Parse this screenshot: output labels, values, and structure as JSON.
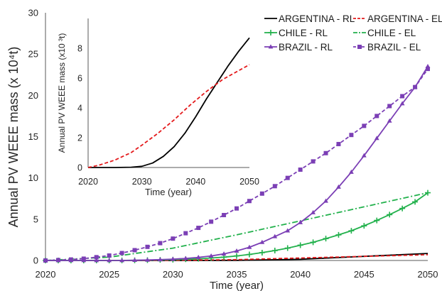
{
  "chart_data": [
    {
      "id": "main",
      "type": "line",
      "xlabel": "Time (year)",
      "ylabel": "Annual PV WEEE mass (x 10⁴t)",
      "xlim": [
        2020,
        2050
      ],
      "ylim": [
        0,
        30
      ],
      "xticks": [
        2020,
        2025,
        2030,
        2035,
        2040,
        2045,
        2050
      ],
      "yticks": [
        0,
        5,
        10,
        15,
        20,
        25,
        30
      ],
      "grid": false,
      "legend_position": "top-right",
      "series": [
        {
          "name": "ARGENTINA - RL",
          "color": "#000000",
          "dash": "solid",
          "marker": "none",
          "x": [
            2020,
            2025,
            2030,
            2035,
            2040,
            2045,
            2050
          ],
          "y": [
            0,
            0,
            0,
            0.02,
            0.15,
            0.5,
            0.85
          ]
        },
        {
          "name": "ARGENTINA - EL",
          "color": "#e41a1c",
          "dash": "dash",
          "marker": "none",
          "x": [
            2020,
            2025,
            2030,
            2035,
            2040,
            2045,
            2050
          ],
          "y": [
            0,
            0,
            0.02,
            0.1,
            0.3,
            0.5,
            0.7
          ]
        },
        {
          "name": "CHILE - RL",
          "color": "#22b14c",
          "dash": "solid",
          "marker": "plus",
          "x": [
            2020,
            2021,
            2022,
            2023,
            2024,
            2025,
            2026,
            2027,
            2028,
            2029,
            2030,
            2031,
            2032,
            2033,
            2034,
            2035,
            2036,
            2037,
            2038,
            2039,
            2040,
            2041,
            2042,
            2043,
            2044,
            2045,
            2046,
            2047,
            2048,
            2049,
            2050
          ],
          "y": [
            0,
            0,
            0,
            0,
            0,
            0,
            0.01,
            0.02,
            0.04,
            0.07,
            0.1,
            0.15,
            0.21,
            0.3,
            0.4,
            0.55,
            0.73,
            0.95,
            1.2,
            1.5,
            1.85,
            2.2,
            2.65,
            3.1,
            3.6,
            4.2,
            4.85,
            5.55,
            6.3,
            7.1,
            8.2
          ]
        },
        {
          "name": "CHILE - EL",
          "color": "#22b14c",
          "dash": "dashdot",
          "marker": "none",
          "x": [
            2020,
            2025,
            2030,
            2035,
            2040,
            2045,
            2050
          ],
          "y": [
            0,
            0.4,
            1.5,
            3.1,
            4.8,
            6.5,
            8.2
          ]
        },
        {
          "name": "BRAZIL - RL",
          "color": "#7b3fb5",
          "dash": "solid",
          "marker": "triangle",
          "x": [
            2020,
            2021,
            2022,
            2023,
            2024,
            2025,
            2026,
            2027,
            2028,
            2029,
            2030,
            2031,
            2032,
            2033,
            2034,
            2035,
            2036,
            2037,
            2038,
            2039,
            2040,
            2041,
            2042,
            2043,
            2044,
            2045,
            2046,
            2047,
            2048,
            2049,
            2050
          ],
          "y": [
            0,
            0,
            0,
            0,
            0,
            0,
            0,
            0.03,
            0.06,
            0.1,
            0.16,
            0.25,
            0.38,
            0.55,
            0.8,
            1.15,
            1.6,
            2.2,
            2.9,
            3.6,
            4.6,
            5.8,
            7.2,
            8.9,
            10.7,
            12.7,
            14.8,
            16.9,
            19.0,
            21.0,
            23.5
          ]
        },
        {
          "name": "BRAZIL - EL",
          "color": "#7b3fb5",
          "dash": "dash",
          "marker": "square",
          "x": [
            2020,
            2021,
            2022,
            2023,
            2024,
            2025,
            2026,
            2027,
            2028,
            2029,
            2030,
            2031,
            2032,
            2033,
            2034,
            2035,
            2036,
            2037,
            2038,
            2039,
            2040,
            2041,
            2042,
            2043,
            2044,
            2045,
            2046,
            2047,
            2048,
            2049,
            2050
          ],
          "y": [
            0,
            0.05,
            0.12,
            0.22,
            0.4,
            0.6,
            0.9,
            1.25,
            1.65,
            2.1,
            2.65,
            3.3,
            3.95,
            4.7,
            5.5,
            6.3,
            7.2,
            8.1,
            9.0,
            10.0,
            11.0,
            12.0,
            13.0,
            14.1,
            15.2,
            16.3,
            17.5,
            18.7,
            19.9,
            21.0,
            23.2
          ]
        }
      ]
    },
    {
      "id": "inset",
      "type": "line",
      "xlabel": "Time (year)",
      "ylabel": "Annual PV WEEE mass (x10 ³t)",
      "xlim": [
        2020,
        2050
      ],
      "ylim": [
        0,
        10
      ],
      "xticks": [
        2020,
        2030,
        2040,
        2050
      ],
      "yticks": [
        0,
        2,
        4,
        6,
        8
      ],
      "grid": false,
      "series": [
        {
          "color": "#000000",
          "dash": "solid",
          "marker": "none",
          "x": [
            2020,
            2025,
            2028,
            2030,
            2032,
            2034,
            2036,
            2038,
            2040,
            2042,
            2044,
            2046,
            2048,
            2050
          ],
          "y": [
            0,
            0,
            0.02,
            0.08,
            0.3,
            0.75,
            1.4,
            2.3,
            3.4,
            4.6,
            5.7,
            6.8,
            7.8,
            8.7
          ]
        },
        {
          "color": "#e41a1c",
          "dash": "dash",
          "marker": "none",
          "x": [
            2020,
            2022,
            2025,
            2028,
            2030,
            2033,
            2036,
            2039,
            2042,
            2045,
            2048,
            2050
          ],
          "y": [
            0,
            0.15,
            0.5,
            1.0,
            1.5,
            2.3,
            3.2,
            4.2,
            5.1,
            5.9,
            6.5,
            6.9
          ]
        }
      ]
    }
  ]
}
